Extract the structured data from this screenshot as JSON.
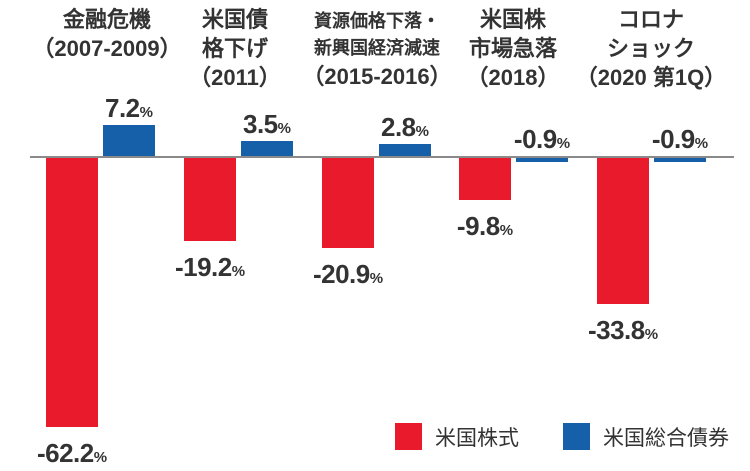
{
  "chart_data": {
    "type": "bar",
    "title": "",
    "unit_suffix": "%",
    "categories": [
      {
        "lines": [
          "金融危機",
          "（2007-2009）"
        ],
        "small": false
      },
      {
        "lines": [
          "米国債",
          "格下げ",
          "（2011）"
        ],
        "small": false
      },
      {
        "lines": [
          "資源価格下落・",
          "新興国経済減速",
          "（2015-2016）"
        ],
        "small": true
      },
      {
        "lines": [
          "米国株",
          "市場急落",
          "（2018）"
        ],
        "small": false
      },
      {
        "lines": [
          "コロナ",
          "ショック",
          "（2020 第1Q）"
        ],
        "small": false
      }
    ],
    "series": [
      {
        "name": "米国株式",
        "color": "#e81a2c",
        "values": [
          -62.2,
          -19.2,
          -20.9,
          -9.8,
          -33.8
        ]
      },
      {
        "name": "米国総合債券",
        "color": "#1560a8",
        "values": [
          7.2,
          3.5,
          2.8,
          -0.9,
          -0.9
        ]
      }
    ],
    "axis": {
      "zero_baseline": true,
      "gridlines": false,
      "y_axis_visible": false
    },
    "legend": {
      "position": "bottom-right",
      "entries": [
        "米国株式",
        "米国総合債券"
      ]
    }
  },
  "colors": {
    "stocks_red": "#e81a2c",
    "bonds_blue": "#1560a8",
    "text": "#333333",
    "axis_line": "#8a8a8a",
    "background": "#ffffff"
  }
}
